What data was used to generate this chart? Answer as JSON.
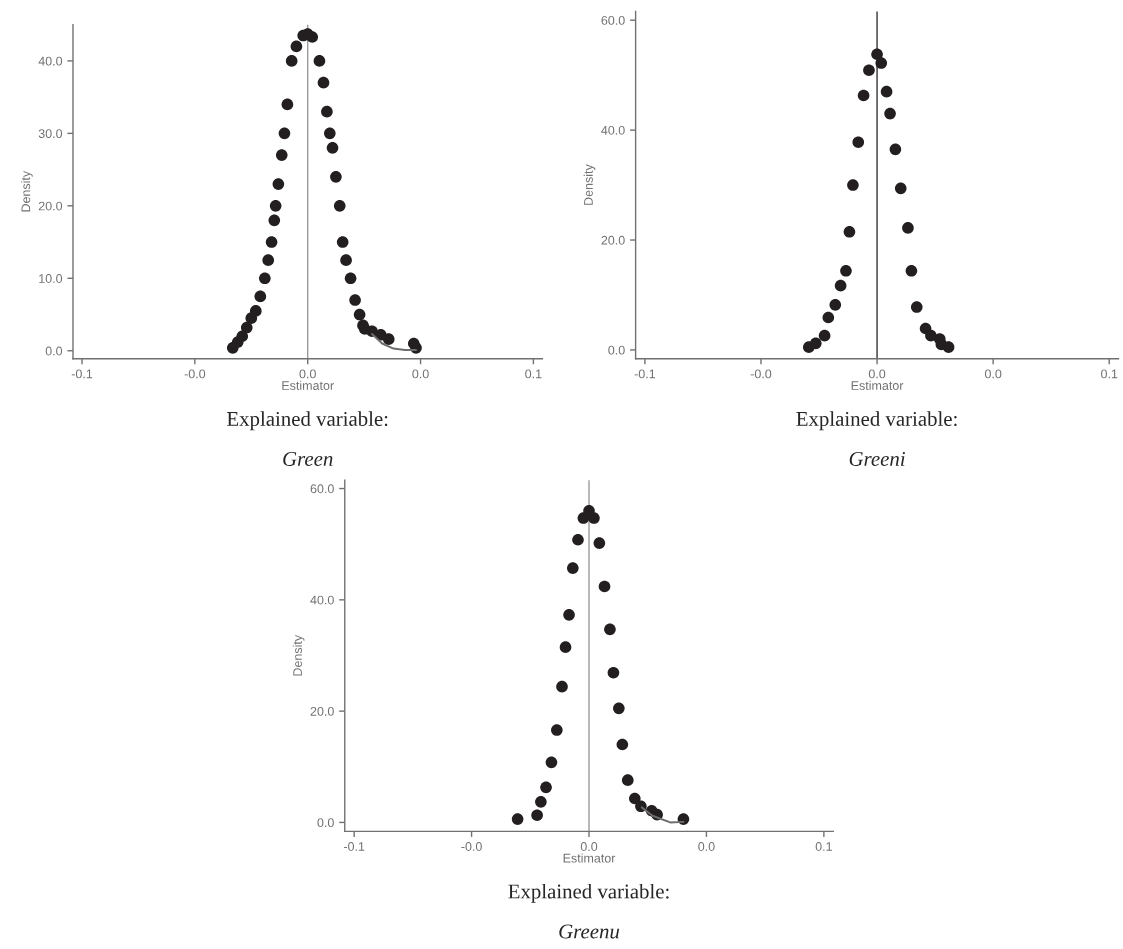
{
  "chart_data": [
    {
      "type": "scatter",
      "xlabel": "Estimator",
      "ylabel": "Density",
      "marker": "circle",
      "grid": false,
      "legend": false,
      "xlim": [
        -0.104,
        0.104
      ],
      "ylim": [
        -1.1,
        45
      ],
      "xticks": [
        {
          "value": -0.1,
          "label": "-0.1"
        },
        {
          "value": -0.05,
          "label": "-0.0"
        },
        {
          "value": 0,
          "label": "0.0"
        },
        {
          "value": 0.05,
          "label": "0.0"
        },
        {
          "value": 0.1,
          "label": "0.1"
        }
      ],
      "yticks": [
        {
          "value": 0,
          "label": "0.0"
        },
        {
          "value": 10,
          "label": "10.0"
        },
        {
          "value": 20,
          "label": "20.0"
        },
        {
          "value": 30,
          "label": "30.0"
        },
        {
          "value": 40,
          "label": "40.0"
        }
      ],
      "ref_lines": [
        {
          "axis": "x",
          "value": 0,
          "color": "#9a9a9a"
        }
      ],
      "series": [
        {
          "color": "#231f20",
          "x": [
            -0.0332,
            -0.031,
            -0.029,
            -0.027,
            -0.025,
            -0.023,
            -0.021,
            -0.019,
            -0.0175,
            -0.016,
            -0.0148,
            -0.0142,
            -0.013,
            -0.0115,
            -0.0103,
            -0.009,
            -0.0071,
            -0.005,
            -0.002,
            0,
            0.002,
            0.0052,
            0.007,
            0.0085,
            0.0098,
            0.011,
            0.0125,
            0.0142,
            0.0155,
            0.017,
            0.019,
            0.021,
            0.023,
            0.0245,
            0.0253,
            0.0285,
            0.0324,
            0.0359,
            0.047,
            0.048
          ],
          "values": [
            0.4,
            1.2,
            2.0,
            3.2,
            4.5,
            5.5,
            7.5,
            10,
            12.5,
            15,
            18,
            20,
            23,
            27,
            30,
            34,
            40,
            42,
            43.5,
            43.7,
            43.3,
            40,
            37,
            33,
            30,
            28,
            24,
            20,
            15,
            12.5,
            10,
            7,
            5,
            3.5,
            3,
            2.7,
            2.2,
            1.6,
            1.0,
            0.4
          ]
        },
        {
          "type": "line",
          "marker": "none",
          "color": "#6d6d6d",
          "x": [
            0.0285,
            0.033,
            0.038,
            0.043,
            0.048
          ],
          "values": [
            2.3,
            1.0,
            0.3,
            0.1,
            0.1
          ]
        }
      ],
      "annotations": [
        "Explained variable:",
        "Green"
      ]
    },
    {
      "type": "scatter",
      "xlabel": "Estimator",
      "ylabel": "Density",
      "marker": "circle",
      "grid": false,
      "legend": false,
      "xlim": [
        -0.104,
        0.104
      ],
      "ylim": [
        -1.6,
        61.6
      ],
      "xticks": [
        {
          "value": -0.1,
          "label": "-0.1"
        },
        {
          "value": -0.05,
          "label": "-0.0"
        },
        {
          "value": 0,
          "label": "0.0"
        },
        {
          "value": 0.05,
          "label": "0.0"
        },
        {
          "value": 0.1,
          "label": "0.1"
        }
      ],
      "yticks": [
        {
          "value": 0,
          "label": "0.0"
        },
        {
          "value": 20,
          "label": "20.0"
        },
        {
          "value": 40,
          "label": "40.0"
        },
        {
          "value": 60,
          "label": "60.0"
        }
      ],
      "ref_lines": [
        {
          "axis": "x",
          "value": 0,
          "color": "#333333"
        }
      ],
      "series": [
        {
          "color": "#231f20",
          "x": [
            -0.0294,
            -0.0264,
            -0.0226,
            -0.021,
            -0.018,
            -0.0157,
            -0.0134,
            -0.0119,
            -0.0104,
            -0.0081,
            -0.0058,
            -0.0035,
            0,
            0.0018,
            0.0041,
            0.0056,
            0.0079,
            0.0102,
            0.0133,
            0.0148,
            0.0171,
            0.0209,
            0.0232,
            0.027,
            0.0277,
            0.0308
          ],
          "values": [
            0.5,
            1.2,
            2.6,
            5.9,
            8.2,
            11.7,
            14.4,
            21.5,
            30,
            37.8,
            46.3,
            50.9,
            53.8,
            52.2,
            47,
            43,
            36.5,
            29.4,
            22.2,
            14.4,
            7.8,
            3.9,
            2.6,
            2.0,
            1.0,
            0.5
          ]
        }
      ],
      "annotations": [
        "Explained variable:",
        "Greeni"
      ]
    },
    {
      "type": "scatter",
      "xlabel": "Estimator",
      "ylabel": "Density",
      "marker": "circle",
      "grid": false,
      "legend": false,
      "xlim": [
        -0.104,
        0.104
      ],
      "ylim": [
        -1.6,
        61.5
      ],
      "xticks": [
        {
          "value": -0.1,
          "label": "-0.1"
        },
        {
          "value": -0.05,
          "label": "-0.0"
        },
        {
          "value": 0,
          "label": "0.0"
        },
        {
          "value": 0.05,
          "label": "0.0"
        },
        {
          "value": 0.1,
          "label": "0.1"
        }
      ],
      "yticks": [
        {
          "value": 0,
          "label": "0.0"
        },
        {
          "value": 20,
          "label": "20.0"
        },
        {
          "value": 40,
          "label": "40.0"
        },
        {
          "value": 60,
          "label": "60.0"
        }
      ],
      "ref_lines": [
        {
          "axis": "x",
          "value": 0,
          "color": "#9a9a9a"
        }
      ],
      "series": [
        {
          "color": "#231f20",
          "x": [
            -0.0304,
            -0.0221,
            -0.0205,
            -0.0183,
            -0.016,
            -0.0137,
            -0.0115,
            -0.01,
            -0.0085,
            -0.0069,
            -0.0047,
            -0.0024,
            0,
            0.0021,
            0.0044,
            0.0066,
            0.0089,
            0.0104,
            0.0127,
            0.0142,
            0.0165,
            0.0195,
            0.0221,
            0.0267,
            0.029,
            0.0402
          ],
          "values": [
            0.6,
            1.3,
            3.7,
            6.3,
            10.8,
            16.6,
            24.4,
            31.5,
            37.3,
            45.7,
            50.8,
            54.7,
            56,
            54.7,
            50.2,
            42.4,
            34.7,
            26.9,
            20.5,
            14,
            7.6,
            4.3,
            2.9,
            2.1,
            1.4,
            0.6
          ]
        },
        {
          "type": "line",
          "marker": "none",
          "color": "#6d6d6d",
          "x": [
            0.0225,
            0.027,
            0.0346,
            0.0402
          ],
          "values": [
            2.7,
            1.2,
            0.0,
            0.1
          ]
        }
      ],
      "annotations": [
        "Explained variable:",
        "Greenu"
      ]
    }
  ]
}
